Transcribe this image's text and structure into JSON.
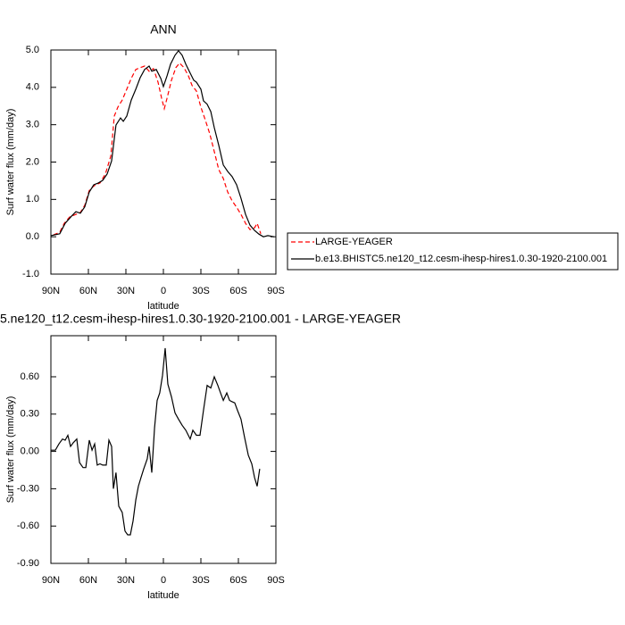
{
  "chart_data": [
    {
      "type": "line",
      "title": "ANN",
      "xlabel": "latitude",
      "ylabel": "Surf water flux (mm/day)",
      "xlim": [
        90,
        -90
      ],
      "xticks": [
        {
          "value": 90,
          "label": "90N"
        },
        {
          "value": 60,
          "label": "60N"
        },
        {
          "value": 30,
          "label": "30N"
        },
        0,
        {
          "value": -30,
          "label": "30S"
        },
        {
          "value": -60,
          "label": "60S"
        },
        {
          "value": -90,
          "label": "90S"
        }
      ],
      "ylim": [
        -1,
        5
      ],
      "yticks": [
        {
          "value": -1,
          "label": "-1.0"
        },
        {
          "value": 0,
          "label": "0.0"
        },
        {
          "value": 1,
          "label": "1.0"
        },
        {
          "value": 2,
          "label": "2.0"
        },
        {
          "value": 3,
          "label": "3.0"
        },
        {
          "value": 4,
          "label": "4.0"
        },
        {
          "value": 5,
          "label": "5.0"
        }
      ],
      "legend": "right",
      "series": [
        {
          "name": "LARGE-YEAGER",
          "color": "#ff0000",
          "dash": true,
          "x": [
            87.9,
            82.9,
            79.3,
            75.0,
            70.0,
            66.4,
            62.9,
            59.3,
            55.7,
            50.7,
            46.4,
            42.1,
            39.3,
            36.4,
            32.9,
            29.3,
            25.7,
            22.1,
            18.6,
            15.0,
            11.4,
            7.9,
            4.3,
            1.4,
            -0.7,
            -2.9,
            -6.4,
            -10.0,
            -12.9,
            -16.4,
            -20.0,
            -22.9,
            -26.4,
            -30.0,
            -33.6,
            -37.1,
            -40.7,
            -44.3,
            -47.9,
            -51.4,
            -55.0,
            -58.6,
            -62.1,
            -65.7,
            -69.3,
            -72.9,
            -75.0,
            -77.9
          ],
          "values": [
            0.05,
            0.12,
            0.36,
            0.53,
            0.6,
            0.65,
            0.84,
            1.24,
            1.36,
            1.44,
            1.68,
            2.16,
            3.23,
            3.47,
            3.66,
            3.95,
            4.24,
            4.48,
            4.53,
            4.57,
            4.43,
            4.5,
            4.14,
            3.71,
            3.43,
            3.71,
            4.19,
            4.53,
            4.65,
            4.53,
            4.31,
            4.05,
            3.9,
            3.47,
            3.12,
            2.76,
            2.28,
            1.8,
            1.56,
            1.2,
            0.96,
            0.79,
            0.6,
            0.36,
            0.19,
            0.24,
            0.36,
            0.08
          ]
        },
        {
          "name": "b.e13.BHISTC5.ne120_t12.cesm-ihesp-hires1.0.30-1920-2100.001",
          "color": "#000000",
          "dash": false,
          "x": [
            90,
            82.9,
            78.6,
            73.6,
            70.0,
            66.4,
            62.9,
            59.3,
            55.7,
            52.1,
            48.6,
            45.0,
            41.4,
            37.9,
            34.3,
            32.1,
            29.3,
            25.7,
            22.1,
            18.6,
            15.0,
            11.4,
            9.3,
            5.7,
            2.1,
            0,
            -2.9,
            -5.7,
            -9.3,
            -12.1,
            -15.0,
            -17.9,
            -21.4,
            -24.3,
            -26.4,
            -30.0,
            -32.1,
            -35.0,
            -37.9,
            -40.7,
            -44.3,
            -47.9,
            -51.4,
            -55.0,
            -58.6,
            -62.1,
            -65.7,
            -69.3,
            -72.9,
            -76.4,
            -80.0,
            -83.6,
            -88.6
          ],
          "values": [
            0.03,
            0.08,
            0.36,
            0.55,
            0.67,
            0.63,
            0.8,
            1.2,
            1.39,
            1.44,
            1.51,
            1.68,
            2.03,
            2.99,
            3.18,
            3.09,
            3.23,
            3.66,
            3.95,
            4.26,
            4.48,
            4.57,
            4.43,
            4.48,
            4.24,
            4.02,
            4.31,
            4.62,
            4.86,
            4.98,
            4.86,
            4.62,
            4.38,
            4.19,
            4.14,
            3.95,
            3.64,
            3.55,
            3.35,
            2.92,
            2.45,
            1.92,
            1.75,
            1.61,
            1.39,
            1.03,
            0.6,
            0.31,
            0.17,
            0.07,
            0.0,
            0.03,
            0.0
          ]
        }
      ]
    },
    {
      "type": "line",
      "title": "5.ne120_t12.cesm-ihesp-hires1.0.30-1920-2100.001 - LARGE-YEAGER",
      "xlabel": "latitude",
      "ylabel": "Surf water flux (mm/day)",
      "xlim": [
        90,
        -90
      ],
      "xticks": [
        {
          "value": 90,
          "label": "90N"
        },
        {
          "value": 60,
          "label": "60N"
        },
        {
          "value": 30,
          "label": "30N"
        },
        0,
        {
          "value": -30,
          "label": "30S"
        },
        {
          "value": -60,
          "label": "60S"
        },
        {
          "value": -90,
          "label": "90S"
        }
      ],
      "ylim": [
        -0.9,
        0.93
      ],
      "yticks": [
        {
          "value": -0.9,
          "label": "-0.90"
        },
        {
          "value": -0.6,
          "label": "-0.60"
        },
        {
          "value": -0.3,
          "label": "-0.30"
        },
        {
          "value": 0,
          "label": "0.00"
        },
        {
          "value": 0.3,
          "label": "0.30"
        },
        {
          "value": 0.6,
          "label": "0.60"
        }
      ],
      "series": [
        {
          "color": "#000000",
          "dash": false,
          "x": [
            90,
            86.4,
            83.6,
            80.7,
            78.6,
            76.4,
            74.3,
            72.1,
            69.3,
            67.1,
            64.3,
            62.1,
            59.3,
            57.1,
            55.0,
            52.9,
            50.7,
            48.6,
            45.7,
            43.6,
            41.4,
            40.0,
            37.9,
            35.7,
            32.9,
            30.7,
            28.6,
            26.4,
            24.3,
            22.1,
            20.0,
            17.9,
            15.7,
            12.9,
            11.4,
            9.3,
            7.1,
            5.0,
            2.9,
            0.7,
            -1.4,
            -3.6,
            -6.4,
            -9.3,
            -12.1,
            -15.0,
            -17.9,
            -21.4,
            -23.6,
            -26.4,
            -29.3,
            -32.1,
            -35.0,
            -37.9,
            -40.7,
            -43.6,
            -45.7,
            -47.9,
            -50.7,
            -52.9,
            -55.0,
            -57.1,
            -59.3,
            -62.1,
            -65.0,
            -67.9,
            -70.7,
            -72.9,
            -75.0,
            -77.1
          ],
          "values": [
            0.01,
            0.01,
            0.06,
            0.1,
            0.09,
            0.13,
            0.04,
            0.07,
            0.1,
            -0.09,
            -0.13,
            -0.13,
            0.09,
            0.01,
            0.06,
            -0.11,
            -0.1,
            -0.11,
            -0.11,
            0.09,
            0.04,
            -0.3,
            -0.17,
            -0.44,
            -0.49,
            -0.64,
            -0.67,
            -0.67,
            -0.56,
            -0.39,
            -0.28,
            -0.21,
            -0.14,
            -0.06,
            0.04,
            -0.17,
            0.19,
            0.41,
            0.47,
            0.61,
            0.83,
            0.54,
            0.44,
            0.31,
            0.26,
            0.21,
            0.17,
            0.1,
            0.17,
            0.13,
            0.13,
            0.33,
            0.53,
            0.51,
            0.6,
            0.53,
            0.47,
            0.41,
            0.47,
            0.41,
            0.4,
            0.39,
            0.33,
            0.26,
            0.11,
            -0.03,
            -0.1,
            -0.21,
            -0.28,
            -0.14
          ]
        }
      ]
    }
  ]
}
